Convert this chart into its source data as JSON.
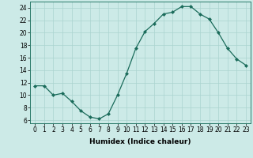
{
  "x": [
    0,
    1,
    2,
    3,
    4,
    5,
    6,
    7,
    8,
    9,
    10,
    11,
    12,
    13,
    14,
    15,
    16,
    17,
    18,
    19,
    20,
    21,
    22,
    23
  ],
  "y": [
    11.5,
    11.5,
    10.0,
    10.3,
    9.0,
    7.5,
    6.5,
    6.2,
    7.0,
    10.0,
    13.5,
    17.5,
    20.2,
    21.5,
    23.0,
    23.3,
    24.2,
    24.2,
    23.0,
    22.2,
    20.0,
    17.5,
    15.8,
    14.8
  ],
  "line_color": "#1a6b5a",
  "marker": "D",
  "markersize": 2.0,
  "linewidth": 0.9,
  "bg_color": "#cceae7",
  "grid_color": "#aad4d0",
  "xlabel": "Humidex (Indice chaleur)",
  "xlim": [
    -0.5,
    23.5
  ],
  "ylim": [
    5.5,
    25.0
  ],
  "yticks": [
    6,
    8,
    10,
    12,
    14,
    16,
    18,
    20,
    22,
    24
  ],
  "xticks": [
    0,
    1,
    2,
    3,
    4,
    5,
    6,
    7,
    8,
    9,
    10,
    11,
    12,
    13,
    14,
    15,
    16,
    17,
    18,
    19,
    20,
    21,
    22,
    23
  ],
  "xlabel_fontsize": 6.5,
  "tick_fontsize": 5.5
}
